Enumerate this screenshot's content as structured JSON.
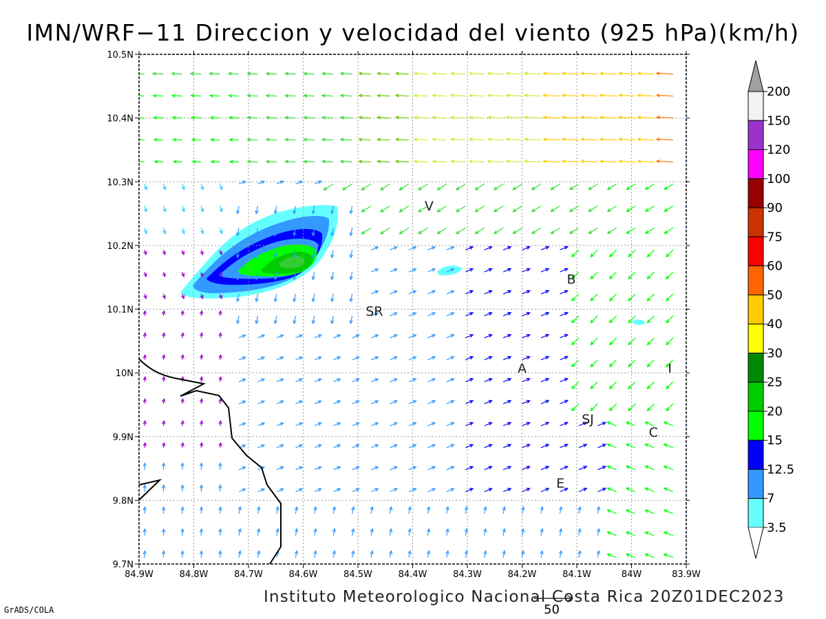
{
  "title": "IMN/WRF−11 Direccion y velocidad del viento (925 hPa)(km/h)",
  "credit": "Instituto Meteorologico Nacional Costa Rica  20Z01DEC2023",
  "software": "GrADS/COLA",
  "reference_vector_label": "50",
  "axes": {
    "x_ticks": [
      "84.9W",
      "84.8W",
      "84.7W",
      "84.6W",
      "84.5W",
      "84.4W",
      "84.3W",
      "84.2W",
      "84.1W",
      "84W",
      "83.9W"
    ],
    "y_ticks": [
      "10.5N",
      "10.4N",
      "10.3N",
      "10.2N",
      "10.1N",
      "10N",
      "9.9N",
      "9.8N",
      "9.7N"
    ],
    "lon_range": [
      -84.9,
      -83.9
    ],
    "lat_range": [
      9.7,
      10.5
    ]
  },
  "places": [
    {
      "code": "V",
      "lon": -84.37,
      "lat": 10.255
    },
    {
      "code": "SR",
      "lon": -84.47,
      "lat": 10.09
    },
    {
      "code": "B",
      "lon": -84.11,
      "lat": 10.14
    },
    {
      "code": "A",
      "lon": -84.2,
      "lat": 10.0
    },
    {
      "code": "I",
      "lon": -83.93,
      "lat": 10.0
    },
    {
      "code": "SJ",
      "lon": -84.08,
      "lat": 9.92
    },
    {
      "code": "C",
      "lon": -83.96,
      "lat": 9.9
    },
    {
      "code": "E",
      "lon": -84.13,
      "lat": 9.82
    }
  ],
  "legend": {
    "labels": [
      "200",
      "150",
      "120",
      "100",
      "90",
      "75",
      "60",
      "50",
      "40",
      "30",
      "25",
      "20",
      "15",
      "12.5",
      "7",
      "3.5"
    ],
    "colors": [
      "#a0a0a0",
      "#f2f2f2",
      "#9933cc",
      "#ff00ff",
      "#990000",
      "#cc3300",
      "#ff0000",
      "#ff6600",
      "#ffcc00",
      "#ffff00",
      "#008800",
      "#00cc00",
      "#00ff00",
      "#0000ff",
      "#3399ff",
      "#66ffff"
    ]
  },
  "colors": {
    "coastline": "#000000",
    "grid": "#999999",
    "frame": "#000000"
  },
  "speed_field": {
    "description_levels_kmh": [
      3.5,
      7,
      12.5,
      15,
      20,
      25
    ],
    "max_region": {
      "lon": -84.62,
      "lat": 10.175
    }
  }
}
